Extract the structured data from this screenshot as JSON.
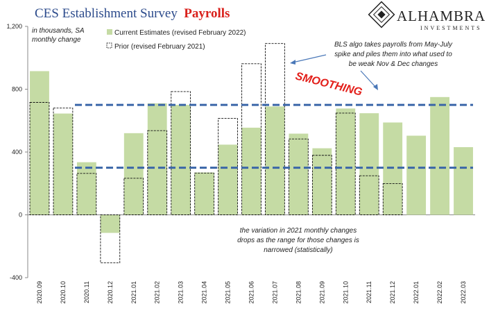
{
  "title": {
    "main": "CES Establishment Survey",
    "accent": "Payrolls"
  },
  "logo": {
    "name": "ALHAMBRA",
    "sub": "INVESTMENTS"
  },
  "subtitle": [
    "in thousands, SA",
    "monthly change"
  ],
  "annotations": {
    "smoothing": "SMOOTHING",
    "bls_note": [
      "BLS algo takes payrolls from May-July",
      "spike and piles them into what used to",
      "be weak Nov & Dec changes"
    ],
    "variation_note": [
      "the variation in 2021 monthly changes",
      "drops as the range for those changes is",
      "narrowed (statistically)"
    ]
  },
  "colors": {
    "current": "#c5dba4",
    "prior_border": "#111111",
    "dashed": "#3a66a8",
    "title": "#2b4a8b",
    "accent": "#d9211c"
  },
  "chart_data": {
    "type": "bar",
    "categories": [
      "2020.09",
      "2020.10",
      "2020.11",
      "2020.12",
      "2021.01",
      "2021.02",
      "2021.03",
      "2021.04",
      "2021.05",
      "2021.06",
      "2021.07",
      "2021.08",
      "2021.09",
      "2021.10",
      "2021.11",
      "2021.12",
      "2022.01",
      "2022.02",
      "2022.03"
    ],
    "series": [
      {
        "name": "Current Estimates (revised February 2022)",
        "style": "filled",
        "values": [
          915,
          645,
          335,
          -115,
          520,
          710,
          700,
          270,
          447,
          555,
          690,
          517,
          424,
          677,
          647,
          588,
          504,
          750,
          431
        ]
      },
      {
        "name": "Prior (revised February 2021)",
        "style": "outline",
        "values": [
          716,
          680,
          264,
          -306,
          233,
          536,
          785,
          266,
          614,
          962,
          1091,
          483,
          379,
          648,
          249,
          199,
          null,
          null,
          null
        ]
      }
    ],
    "reference_lines": [
      700,
      300
    ],
    "ylim": [
      -400,
      1200
    ],
    "yticks": [
      -400,
      0,
      400,
      800,
      1200
    ],
    "ytick_labels": [
      "-400",
      "0",
      "400",
      "800",
      "1,200"
    ],
    "legend_position": "top-left"
  }
}
